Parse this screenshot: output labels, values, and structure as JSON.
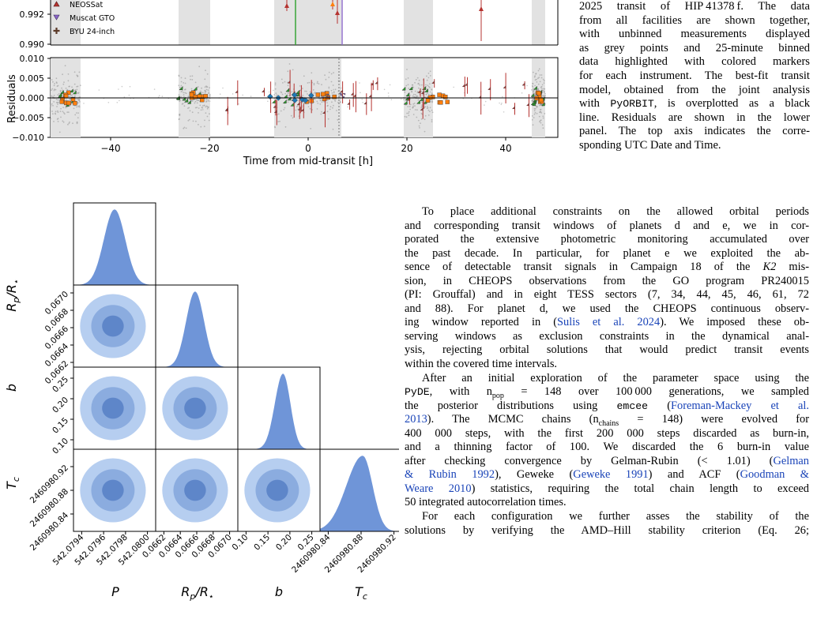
{
  "figure_top": {
    "legend": [
      {
        "label": "NEOSSat",
        "marker": "triangle",
        "color": "#b53330"
      },
      {
        "label": "Muscat GTO",
        "marker": "triangle-down",
        "color": "#8a66c8"
      },
      {
        "label": "BYU 24-inch",
        "marker": "plus",
        "color": "#5b3a29"
      }
    ],
    "upper_y_ticks": [
      "0.992",
      "0.990"
    ],
    "residual_ylabel": "Residuals",
    "residual_y_ticks": [
      "0.010",
      "0.005",
      "0.000",
      "−0.005",
      "−0.010"
    ],
    "x_ticks": [
      "−40",
      "−20",
      "0",
      "20",
      "40"
    ],
    "xlabel": "Time from mid-transit [h]",
    "colors": {
      "sector_shade": "#d8d8d8",
      "grey_points": "#9a9a9a",
      "green": "#2ca02c",
      "orange": "#ff7f0e",
      "red": "#b53330",
      "blue": "#1f77b4",
      "purple": "#8a66c8",
      "model": "#000000"
    }
  },
  "caption_lines": [
    "2025 transit of HIP 41378 f. The data",
    "from all facilities are shown together,",
    "with unbinned measurements displayed",
    "as grey points and 25-minute binned",
    "data highlighted with colored markers",
    "for each instrument. The best-fit transit",
    "model, obtained from the joint analysis",
    "with PyORBIT, is overplotted as a black",
    "line. Residuals are shown in the lower",
    "panel. The top axis indicates the corre-",
    "sponding UTC Date and Time."
  ],
  "corner": {
    "param_labels": [
      "P",
      "Rp/R⋆",
      "b",
      "Tc"
    ],
    "rp_ticks": [
      "0.0670",
      "0.0668",
      "0.0666",
      "0.0664",
      "0.0662"
    ],
    "b_ticks": [
      "0.25",
      "0.20",
      "0.15",
      "0.10"
    ],
    "tc_ticks": [
      "2460980.92",
      "2460980.88",
      "2460980.84"
    ],
    "p_xticks": [
      "542.0794",
      "542.0796",
      "542.0798",
      "542.0800"
    ],
    "rp_xticks": [
      "0.0662",
      "0.0664",
      "0.0666",
      "0.0668",
      "0.0670"
    ],
    "b_xticks": [
      "0.10",
      "0.15",
      "0.20",
      "0.25"
    ],
    "tc_xticks": [
      "2460980.84",
      "2460980.88",
      "2460980.92"
    ],
    "colors": {
      "light": "#b6cef0",
      "mid": "#8bacdf",
      "dark": "#5e86c9",
      "hist": "#6f95d8"
    }
  },
  "body_lines": [
    "To place additional constraints on the allowed orbital periods",
    "and corresponding transit windows of planets d and e, we in cor-",
    "porated the extensive photometric monitoring accumulated over",
    "the past decade. In particular, for planet e we exploited the ab-",
    "sence of detectable transit signals in Campaign 18 of the K2 mis-",
    "sion, in CHEOPS observations from the GO program PR240015",
    "(PI: Grouffal) and in eight TESS sectors (7, 34, 44, 45, 46, 61, 72",
    "and 88). For planet d, we used the CHEOPS continuous observ-",
    "ing window reported in (Sulis et al. 2024). We imposed these ob-",
    "serving windows as exclusion constraints in the dynamical anal-",
    "ysis, rejecting orbital solutions that would predict transit events",
    "within the covered time intervals.",
    "After an initial exploration of the parameter space using the",
    "PyDE, with npop = 148 over 100 000 generations, we sampled",
    "the posterior distributions using emcee (Foreman-Mackey et al.",
    "2013). The MCMC chains (nchains = 148) were evolved for",
    "400 000 steps, with the first 200 000 steps discarded as burn-in,",
    "and a thinning factor of 100. We discarded the 6 burn-in value",
    "after checking convergence by Gelman-Rubin (< 1.01) (Gelman",
    "& Rubin 1992), Geweke (Geweke 1991) and ACF (Goodman &",
    "Weare 2010) statistics, requiring the total chain length to exceed",
    "50 integrated autocorrelation times.",
    "For each configuration we further asses the stability of the",
    "solutions by verifying the AMD–Hill stability criterion (Eq. 26;"
  ],
  "body_parts": {
    "l5a": "sence of detectable transit signals in Campaign 18 of the ",
    "l5b": "K2",
    "l5c": " mis-",
    "l9a": "ing window reported in (",
    "l9b": "Sulis et al. 2024",
    "l9c": "). We imposed these ob-",
    "l14a": "PyDE",
    "l14b": ", with n",
    "l14c": "pop",
    "l14d": " = 148 over 100 000 generations, we sampled",
    "l15a": "the posterior distributions using ",
    "l15b": "emcee",
    "l15c": " (",
    "l15d": "Foreman-Mackey et al.",
    "l16a": "2013",
    "l16b": "). The MCMC chains (n",
    "l16c": "chains",
    "l16d": " = 148) were evolved for",
    "l19a": "after checking convergence by Gelman-Rubin (< 1.01) (",
    "l19b": "Gelman",
    "l20a": "& Rubin 1992",
    "l20b": "), Geweke (",
    "l20c": "Geweke 1991",
    "l20d": ") and ACF (",
    "l20e": "Goodman &",
    "l21a": "Weare 2010",
    "l21b": ") statistics, requiring the total chain length to exceed",
    "cap_pyorbit_a": "with ",
    "cap_pyorbit_b": "PyORBIT",
    "cap_pyorbit_c": ", is overplotted as a black"
  }
}
